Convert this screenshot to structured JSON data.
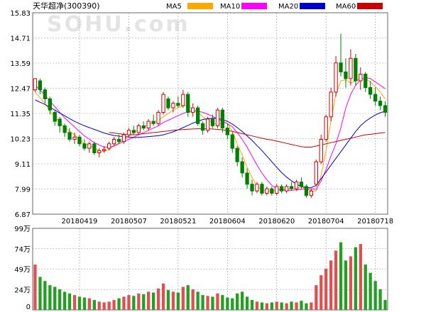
{
  "header": {
    "title": "天华超净(300390)",
    "watermark": "SOHU.com",
    "legend": [
      {
        "name": "MA5",
        "color": "#ffa500"
      },
      {
        "name": "MA10",
        "color": "#ff00ff"
      },
      {
        "name": "MA20",
        "color": "#0000cc"
      },
      {
        "name": "MA60",
        "color": "#cc0000"
      }
    ]
  },
  "colors": {
    "up": "#d00000",
    "down": "#008000",
    "grid": "#999999",
    "border": "#666666"
  },
  "chart_data": [
    {
      "type": "candlestick",
      "title": "",
      "ylim": [
        6.87,
        15.83
      ],
      "y_ticks": [
        "15.83",
        "14.71",
        "13.59",
        "12.47",
        "11.35",
        "10.23",
        "9.11",
        "7.99",
        "6.87"
      ],
      "x_tick_labels": [
        "20180419",
        "20180507",
        "20180521",
        "20180604",
        "20180620",
        "20180704",
        "20180718"
      ],
      "x_tick_index": [
        9,
        19,
        29,
        39,
        49,
        59,
        69
      ],
      "series": [
        {
          "name": "MA5",
          "values": [
            12.3,
            12.05,
            11.8,
            11.45,
            11.2,
            10.95,
            10.75,
            10.55,
            10.4,
            10.2,
            10.0,
            9.95,
            9.8,
            9.7,
            9.65,
            9.75,
            9.9,
            10.05,
            10.2,
            10.35,
            10.5,
            10.62,
            10.75,
            10.87,
            10.95,
            11.05,
            11.2,
            11.35,
            11.5,
            11.6,
            11.7,
            11.68,
            11.55,
            11.4,
            11.2,
            11.05,
            10.95,
            10.85,
            10.95,
            10.9,
            10.55,
            10.0,
            9.5,
            8.95,
            8.5,
            8.1,
            7.95,
            7.9,
            7.9,
            7.92,
            7.95,
            7.98,
            8.0,
            8.02,
            8.05,
            8.0,
            7.9,
            7.9,
            8.6,
            9.7,
            11.0,
            12.2,
            12.8,
            12.85,
            12.7,
            12.8,
            12.9,
            12.9,
            12.75,
            12.55,
            12.3,
            12.0
          ]
        },
        {
          "name": "MA10",
          "values": [
            12.6,
            12.4,
            12.15,
            11.9,
            11.65,
            11.4,
            11.15,
            10.95,
            10.75,
            10.55,
            10.35,
            10.2,
            10.05,
            9.95,
            9.85,
            9.85,
            9.9,
            10.0,
            10.1,
            10.2,
            10.3,
            10.4,
            10.5,
            10.6,
            10.7,
            10.8,
            10.95,
            11.05,
            11.15,
            11.25,
            11.35,
            11.42,
            11.45,
            11.45,
            11.4,
            11.32,
            11.22,
            11.1,
            11.0,
            10.9,
            10.75,
            10.5,
            10.2,
            9.85,
            9.45,
            9.05,
            8.7,
            8.4,
            8.15,
            8.0,
            7.95,
            7.93,
            7.93,
            7.95,
            7.97,
            8.0,
            7.99,
            7.98,
            8.35,
            8.85,
            9.45,
            10.0,
            10.7,
            11.6,
            12.2,
            12.6,
            12.85,
            12.95,
            12.9,
            12.75,
            12.6,
            12.45
          ]
        },
        {
          "name": "MA20",
          "values": [
            11.95,
            11.85,
            11.75,
            11.62,
            11.5,
            11.37,
            11.25,
            11.12,
            11.0,
            10.9,
            10.8,
            10.72,
            10.64,
            10.56,
            10.48,
            10.42,
            10.37,
            10.34,
            10.32,
            10.3,
            10.28,
            10.29,
            10.3,
            10.32,
            10.34,
            10.36,
            10.4,
            10.46,
            10.53,
            10.62,
            10.72,
            10.82,
            10.92,
            11.0,
            11.08,
            11.12,
            11.14,
            11.13,
            11.08,
            11.0,
            10.88,
            10.72,
            10.55,
            10.35,
            10.15,
            9.92,
            9.7,
            9.45,
            9.2,
            8.95,
            8.72,
            8.52,
            8.35,
            8.2,
            8.1,
            8.05,
            8.05,
            8.15,
            8.45,
            8.75,
            9.05,
            9.35,
            9.65,
            9.95,
            10.25,
            10.55,
            10.8,
            11.0,
            11.15,
            11.28,
            11.38,
            11.45
          ]
        },
        {
          "name": "MA60",
          "values": [
            null,
            null,
            null,
            null,
            null,
            null,
            null,
            null,
            null,
            null,
            null,
            null,
            null,
            null,
            null,
            10.5,
            10.48,
            10.45,
            10.42,
            10.4,
            10.4,
            10.42,
            10.45,
            10.47,
            10.5,
            10.52,
            10.55,
            10.57,
            10.6,
            10.62,
            10.63,
            10.65,
            10.66,
            10.67,
            10.67,
            10.67,
            10.66,
            10.64,
            10.62,
            10.6,
            10.55,
            10.5,
            10.45,
            10.4,
            10.35,
            10.3,
            10.25,
            10.2,
            10.17,
            10.12,
            10.07,
            10.02,
            9.97,
            9.92,
            9.87,
            9.85,
            9.85,
            9.9,
            9.95,
            10.0,
            10.05,
            10.1,
            10.15,
            10.2,
            10.25,
            10.3,
            10.35,
            10.4,
            10.42,
            10.45,
            10.48,
            10.5
          ]
        }
      ],
      "ohlc": [
        [
          12.4,
          12.9,
          12.3,
          12.9
        ],
        [
          12.8,
          12.9,
          12.2,
          12.4
        ],
        [
          12.4,
          12.5,
          11.8,
          12.0
        ],
        [
          12.0,
          12.1,
          11.3,
          11.5
        ],
        [
          11.4,
          11.5,
          10.8,
          11.0
        ],
        [
          11.1,
          11.2,
          10.5,
          10.8
        ],
        [
          10.8,
          10.9,
          10.3,
          10.5
        ],
        [
          10.5,
          10.7,
          10.1,
          10.2
        ],
        [
          10.2,
          10.5,
          10.0,
          10.3
        ],
        [
          10.3,
          10.4,
          9.9,
          10.0
        ],
        [
          10.0,
          10.2,
          9.7,
          9.8
        ],
        [
          9.8,
          10.1,
          9.6,
          10.0
        ],
        [
          10.0,
          10.1,
          9.5,
          9.6
        ],
        [
          9.6,
          9.8,
          9.4,
          9.7
        ],
        [
          9.7,
          9.9,
          9.6,
          9.75
        ],
        [
          9.8,
          10.1,
          9.7,
          10.0
        ],
        [
          10.0,
          10.3,
          9.9,
          10.2
        ],
        [
          10.2,
          10.4,
          10.0,
          10.1
        ],
        [
          10.1,
          10.5,
          10.0,
          10.4
        ],
        [
          10.4,
          10.7,
          10.3,
          10.6
        ],
        [
          10.6,
          10.8,
          10.4,
          10.5
        ],
        [
          10.5,
          10.9,
          10.4,
          10.8
        ],
        [
          10.8,
          11.0,
          10.6,
          10.7
        ],
        [
          10.7,
          11.1,
          10.6,
          11.0
        ],
        [
          11.0,
          11.3,
          10.8,
          10.9
        ],
        [
          10.9,
          11.5,
          10.8,
          11.4
        ],
        [
          11.4,
          12.3,
          11.3,
          12.2
        ],
        [
          12.0,
          12.1,
          11.5,
          11.6
        ],
        [
          11.6,
          11.9,
          11.4,
          11.8
        ],
        [
          11.8,
          12.1,
          11.6,
          11.7
        ],
        [
          11.7,
          12.4,
          11.6,
          12.2
        ],
        [
          12.2,
          12.3,
          11.2,
          11.4
        ],
        [
          11.4,
          11.8,
          11.2,
          11.6
        ],
        [
          11.6,
          11.7,
          10.8,
          10.9
        ],
        [
          10.9,
          11.0,
          10.4,
          10.6
        ],
        [
          10.6,
          11.2,
          10.5,
          11.1
        ],
        [
          11.1,
          11.3,
          10.7,
          10.8
        ],
        [
          10.8,
          11.6,
          10.7,
          11.5
        ],
        [
          11.5,
          11.6,
          10.5,
          10.7
        ],
        [
          10.7,
          10.9,
          10.2,
          10.4
        ],
        [
          10.4,
          10.5,
          9.6,
          9.8
        ],
        [
          9.8,
          9.9,
          9.0,
          9.2
        ],
        [
          9.2,
          9.4,
          8.5,
          8.7
        ],
        [
          8.7,
          8.9,
          8.0,
          8.2
        ],
        [
          8.2,
          8.4,
          7.7,
          7.9
        ],
        [
          7.9,
          8.3,
          7.8,
          8.2
        ],
        [
          8.2,
          8.3,
          7.7,
          7.8
        ],
        [
          7.8,
          8.1,
          7.7,
          8.0
        ],
        [
          8.0,
          8.1,
          7.7,
          7.8
        ],
        [
          7.8,
          8.2,
          7.7,
          8.1
        ],
        [
          8.1,
          8.2,
          7.8,
          7.9
        ],
        [
          7.9,
          8.2,
          7.8,
          8.1
        ],
        [
          8.1,
          8.3,
          7.9,
          8.0
        ],
        [
          8.0,
          8.4,
          7.9,
          8.3
        ],
        [
          8.3,
          8.5,
          8.0,
          8.1
        ],
        [
          8.1,
          8.2,
          7.6,
          7.7
        ],
        [
          7.7,
          8.0,
          7.6,
          7.9
        ],
        [
          8.2,
          9.3,
          8.1,
          9.2
        ],
        [
          9.2,
          10.4,
          9.1,
          10.2
        ],
        [
          10.2,
          11.3,
          10.1,
          11.2
        ],
        [
          11.2,
          12.5,
          11.0,
          12.3
        ],
        [
          12.3,
          13.9,
          12.1,
          13.6
        ],
        [
          13.6,
          14.9,
          13.0,
          13.2
        ],
        [
          13.2,
          13.8,
          12.5,
          12.9
        ],
        [
          12.9,
          14.2,
          12.6,
          13.8
        ],
        [
          13.8,
          14.0,
          12.6,
          12.8
        ],
        [
          12.8,
          13.4,
          12.4,
          13.1
        ],
        [
          13.1,
          13.2,
          12.3,
          12.5
        ],
        [
          12.5,
          12.8,
          12.0,
          12.2
        ],
        [
          12.2,
          12.5,
          11.7,
          11.9
        ],
        [
          11.9,
          12.1,
          11.5,
          11.7
        ],
        [
          11.7,
          11.9,
          11.2,
          11.4
        ]
      ]
    },
    {
      "type": "bar",
      "title": "",
      "ylabel": "",
      "ylim": [
        0,
        99
      ],
      "y_ticks": [
        "99万",
        "74万",
        "49万",
        "24万",
        "0"
      ],
      "values": [
        55,
        40,
        35,
        30,
        28,
        25,
        22,
        20,
        18,
        16,
        15,
        14,
        12,
        10,
        9,
        10,
        12,
        14,
        16,
        18,
        17,
        20,
        19,
        22,
        21,
        26,
        32,
        24,
        22,
        21,
        28,
        30,
        25,
        22,
        18,
        17,
        16,
        20,
        18,
        15,
        14,
        20,
        22,
        16,
        12,
        10,
        9,
        8,
        9,
        10,
        9,
        8,
        10,
        9,
        11,
        8,
        9,
        30,
        42,
        50,
        60,
        72,
        82,
        60,
        65,
        76,
        80,
        55,
        45,
        35,
        25,
        12
      ],
      "up": [
        true,
        false,
        false,
        false,
        false,
        false,
        false,
        false,
        true,
        false,
        false,
        true,
        false,
        true,
        true,
        true,
        true,
        false,
        true,
        true,
        false,
        true,
        false,
        true,
        false,
        true,
        true,
        false,
        true,
        false,
        true,
        false,
        true,
        false,
        false,
        true,
        false,
        true,
        false,
        false,
        false,
        false,
        false,
        false,
        false,
        true,
        false,
        true,
        false,
        true,
        false,
        true,
        false,
        true,
        false,
        false,
        true,
        true,
        true,
        true,
        true,
        true,
        false,
        false,
        true,
        false,
        true,
        false,
        false,
        false,
        false,
        false
      ]
    }
  ]
}
